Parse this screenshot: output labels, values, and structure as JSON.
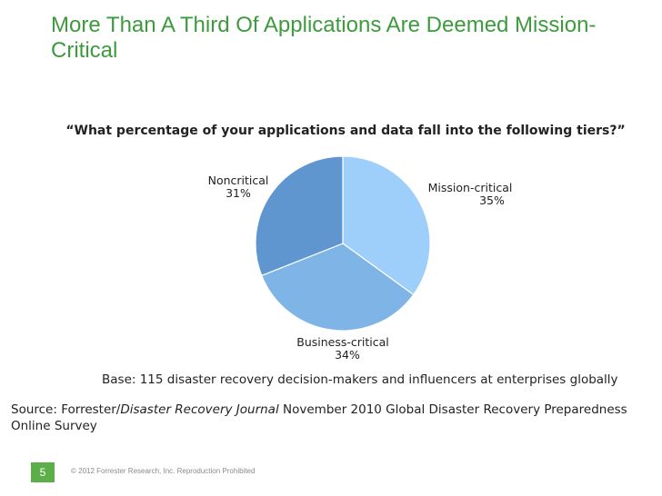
{
  "slide": {
    "title": "More Than A Third Of Applications Are Deemed Mission-Critical",
    "base_note": "Base: 115 disaster recovery decision-makers and influencers at enterprises globally",
    "source_prefix": "Source: Forrester/",
    "source_italic": "Disaster Recovery Journal",
    "source_suffix": " November 2010 Global Disaster Recovery Preparedness Online Survey",
    "page_number": "5",
    "copyright": "© 2012 Forrester Research, Inc. Reproduction Prohibited",
    "accent_color": "#3d9b3d",
    "footer_color": "#5cae48"
  },
  "chart_data": {
    "type": "pie",
    "title": "“What percentage of your applications and data fall into the following tiers?”",
    "slices": [
      {
        "label": "Mission-critical",
        "value": 35,
        "value_label": "35%",
        "color": "#9ecffa"
      },
      {
        "label": "Business-critical",
        "value": 34,
        "value_label": "34%",
        "color": "#7fb4e6"
      },
      {
        "label": "Noncritical",
        "value": 31,
        "value_label": "31%",
        "color": "#5f96cf"
      }
    ]
  }
}
